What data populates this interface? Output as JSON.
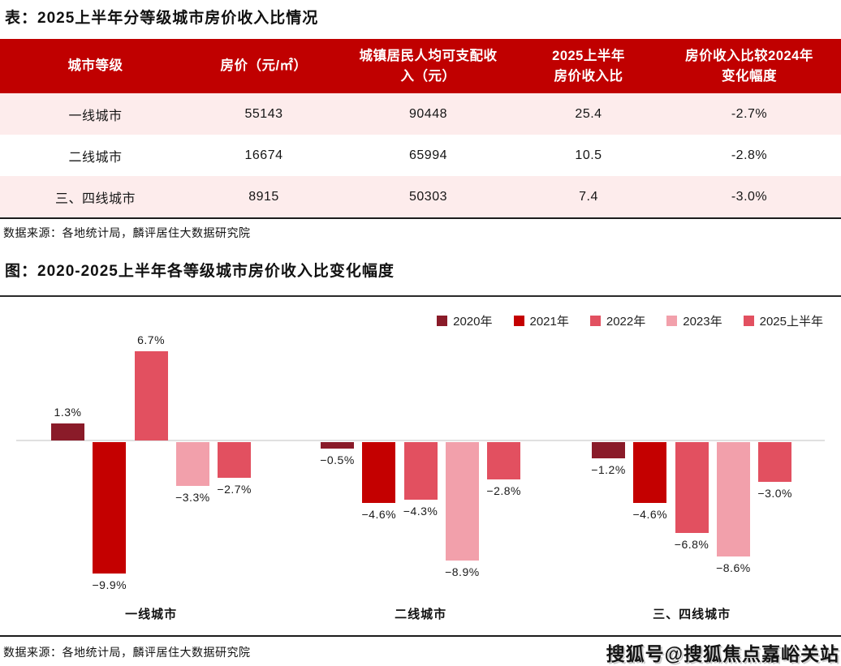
{
  "page": {
    "background": "#ffffff",
    "table_title": "表：2025上半年分等级城市房价收入比情况",
    "table_source": "数据来源：各地统计局，麟评居住大数据研究院",
    "chart_title": "图：2020-2025上半年各等级城市房价收入比变化幅度",
    "chart_source": "数据来源：各地统计局，麟评居住大数据研究院",
    "watermark": "搜狐号@搜狐焦点嘉峪关站"
  },
  "colors": {
    "table_header_bg": "#c00000",
    "table_header_text": "#ffffff",
    "table_stripe_bg": "#fdecec",
    "divider_dark": "#1c1c1c",
    "zero_line": "#e0e0e0"
  },
  "chart_data": [
    {
      "type": "table",
      "title": "表：2025上半年分等级城市房价收入比情况",
      "columns": [
        "城市等级",
        "房价（元/㎡）",
        "城镇居民人均可支配收\n入（元）",
        "2025上半年\n房价收入比",
        "房价收入比较2024年\n变化幅度"
      ],
      "rows": [
        [
          "一线城市",
          "55143",
          "90448",
          "25.4",
          "-2.7%"
        ],
        [
          "二线城市",
          "16674",
          "65994",
          "10.5",
          "-2.8%"
        ],
        [
          "三、四线城市",
          "8915",
          "50303",
          "7.4",
          "-3.0%"
        ]
      ],
      "source": "数据来源：各地统计局，麟评居住大数据研究院"
    },
    {
      "type": "bar",
      "title": "图：2020-2025上半年各等级城市房价收入比变化幅度",
      "categories": [
        "一线城市",
        "二线城市",
        "三、四线城市"
      ],
      "series": [
        {
          "name": "2020年",
          "color": "#8a1b29",
          "values": [
            1.3,
            -0.5,
            -1.2
          ]
        },
        {
          "name": "2021年",
          "color": "#c40000",
          "values": [
            -9.9,
            -4.6,
            -4.6
          ]
        },
        {
          "name": "2022年",
          "color": "#e25060",
          "values": [
            6.7,
            -4.3,
            -6.8
          ]
        },
        {
          "name": "2023年",
          "color": "#f2a0ab",
          "values": [
            -3.3,
            -8.9,
            -8.6
          ]
        },
        {
          "name": "2025上半年",
          "color": "#e25060",
          "values": [
            -2.7,
            -2.8,
            -3.0
          ]
        }
      ],
      "value_suffix": "%",
      "xlabel": "",
      "ylabel": "",
      "ylim": [
        -11,
        8
      ],
      "grid": false,
      "legend_position": "top-right",
      "baseline": 0,
      "source": "数据来源：各地统计局，麟评居住大数据研究院"
    }
  ]
}
